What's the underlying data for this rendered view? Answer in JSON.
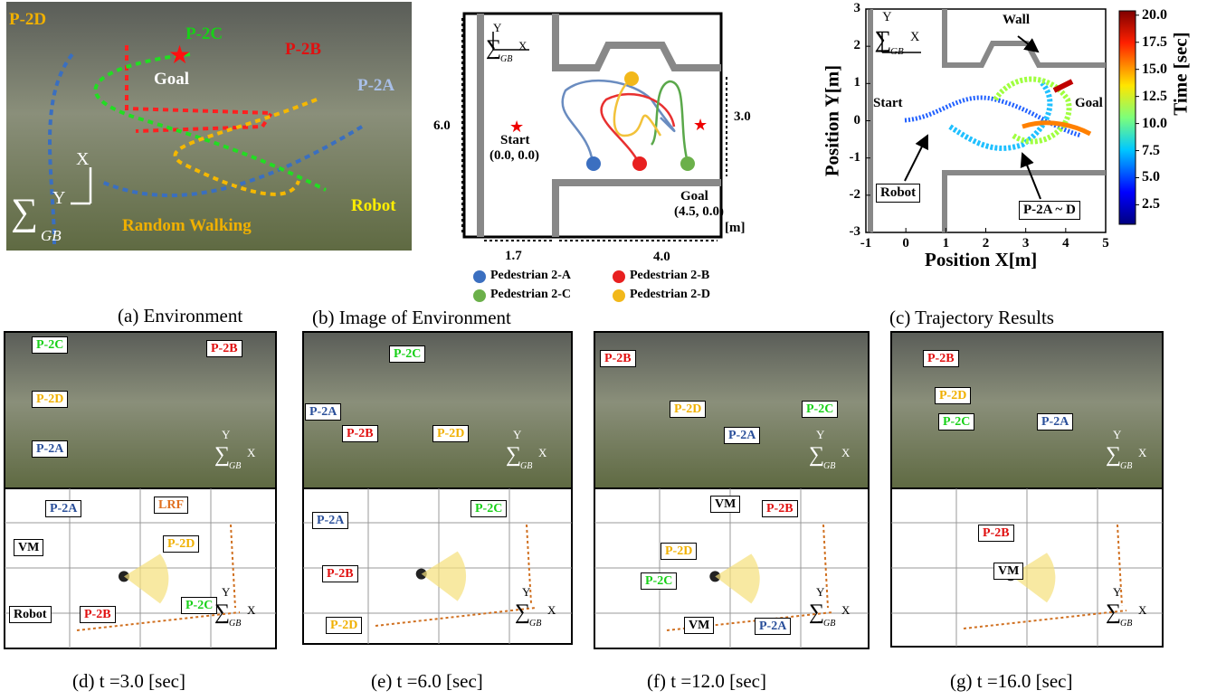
{
  "panel_a": {
    "caption": "(a) Environment",
    "labels": {
      "p2d": "P-2D",
      "p2c": "P-2C",
      "p2b": "P-2B",
      "p2a": "P-2A",
      "goal": "Goal",
      "robot": "Robot",
      "walk": "Random Walking"
    },
    "frame": {
      "x": "X",
      "y": "Y",
      "sigma": "∑",
      "sub": "GB"
    }
  },
  "panel_b": {
    "caption": "(b) Image of Environment",
    "frame": {
      "x": "X",
      "y": "Y",
      "sigma": "∑",
      "sub": "GB"
    },
    "labels": {
      "height": "6.0",
      "room": "3.0",
      "start": "Start",
      "start_xy": "(0.0, 0.0)",
      "goal": "Goal",
      "goal_xy": "(4.5, 0.0)",
      "left": "1.7",
      "right": "4.0",
      "unit": "[m]"
    },
    "legend": [
      "Pedestrian 2-A",
      "Pedestrian 2-B",
      "Pedestrian 2-C",
      "Pedestrian 2-D"
    ]
  },
  "panel_c": {
    "caption": "(c) Trajectory Results",
    "xlabel": "Position X[m]",
    "ylabel": "Position Y[m]",
    "xlim": [
      -1,
      5
    ],
    "ylim": [
      -3,
      3
    ],
    "xticks": [
      -1,
      0,
      1,
      2,
      3,
      4,
      5
    ],
    "yticks": [
      -3,
      -2,
      -1,
      0,
      1,
      2,
      3
    ],
    "frame": {
      "x": "X",
      "y": "Y",
      "sigma": "∑",
      "sub": "GB"
    },
    "labels": {
      "wall": "Wall",
      "start": "Start",
      "goal": "Goal",
      "robot": "Robot",
      "peds": "P-2A ~ D"
    },
    "colorbar": {
      "title": "Time [sec]",
      "lim": [
        0.7,
        20.4
      ],
      "ticks": [
        2.5,
        {
          "value": 5,
          "label": "5.0"
        },
        7.5,
        {
          "value": 10,
          "label": "10.0"
        },
        12.5,
        {
          "value": 15,
          "label": "15.0"
        },
        17.5,
        {
          "value": 20,
          "label": "20.0"
        }
      ]
    }
  },
  "panel_d": {
    "caption": "(d) t =3.0 [sec]",
    "photo": {
      "p2c": "P-2C",
      "p2b": "P-2B",
      "p2d": "P-2D",
      "p2a": "P-2A"
    },
    "photo_frame": {
      "x": "X",
      "y": "Y",
      "sigma": "∑",
      "sub": "GB"
    },
    "map": {
      "p2a": "P-2A",
      "lrf": "LRF",
      "vm": "VM",
      "p2d": "P-2D",
      "robot": "Robot",
      "p2b": "P-2B",
      "p2c": "P-2C"
    },
    "map_frame": {
      "x": "X",
      "y": "Y",
      "sigma": "∑",
      "sub": "GB"
    }
  },
  "panel_e": {
    "caption": "(e) t =6.0 [sec]",
    "photo": {
      "p2c": "P-2C",
      "p2a": "P-2A",
      "p2b": "P-2B",
      "p2d": "P-2D"
    },
    "photo_frame": {
      "x": "X",
      "y": "Y",
      "sigma": "∑",
      "sub": "GB"
    },
    "map": {
      "p2a": "P-2A",
      "p2c": "P-2C",
      "p2b": "P-2B",
      "p2d": "P-2D"
    },
    "map_frame": {
      "x": "X",
      "y": "Y",
      "sigma": "∑",
      "sub": "GB"
    }
  },
  "panel_f": {
    "caption": "(f) t =12.0 [sec]",
    "photo": {
      "p2b": "P-2B",
      "p2d": "P-2D",
      "p2a": "P-2A",
      "p2c": "P-2C"
    },
    "photo_frame": {
      "x": "X",
      "y": "Y",
      "sigma": "∑",
      "sub": "GB"
    },
    "map": {
      "vm": "VM",
      "p2b": "P-2B",
      "p2d": "P-2D",
      "p2c": "P-2C",
      "vm2": "VM",
      "p2a": "P-2A"
    },
    "map_frame": {
      "x": "X",
      "y": "Y",
      "sigma": "∑",
      "sub": "GB"
    }
  },
  "panel_g": {
    "caption": "(g) t =16.0 [sec]",
    "photo": {
      "p2b": "P-2B",
      "p2d": "P-2D",
      "p2c": "P-2C",
      "p2a": "P-2A"
    },
    "photo_frame": {
      "x": "X",
      "y": "Y",
      "sigma": "∑",
      "sub": "GB"
    },
    "map": {
      "p2b": "P-2B",
      "vm": "VM"
    },
    "map_frame": {
      "x": "X",
      "y": "Y",
      "sigma": "∑",
      "sub": "GB"
    }
  }
}
